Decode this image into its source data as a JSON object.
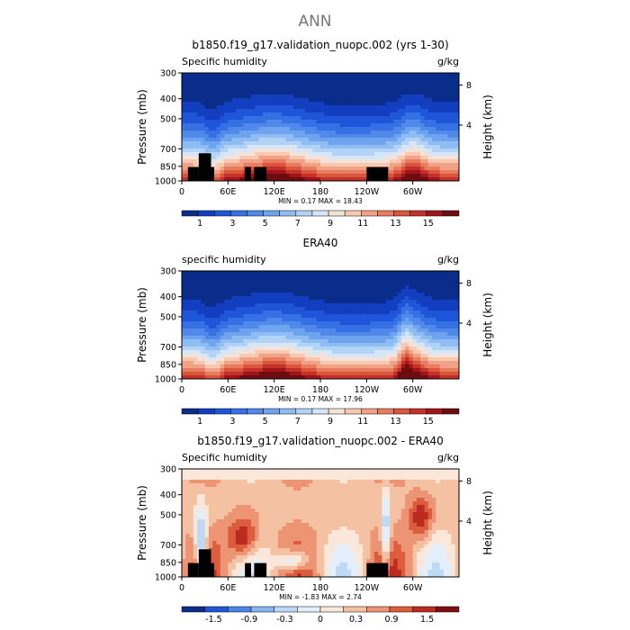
{
  "page_title": "ANN",
  "colors": {
    "sequential": [
      "#0a2c8a",
      "#133ec0",
      "#1f55d8",
      "#3570e4",
      "#5089ea",
      "#6ea3ef",
      "#8fbcf3",
      "#b2d3f6",
      "#d4e6f8",
      "#f3e2d7",
      "#f8c8b0",
      "#f1a286",
      "#e77c5e",
      "#d9553c",
      "#c4302a",
      "#a0141b",
      "#6e0d10"
    ],
    "difference": [
      "#0a2c8a",
      "#1f55d8",
      "#4a85ea",
      "#86b5f1",
      "#bcd9f6",
      "#e2eef9",
      "#fbe6da",
      "#f5c1a3",
      "#ec9473",
      "#db5d3e",
      "#bb2b20",
      "#800f12"
    ]
  },
  "chart_data": [
    {
      "type": "heatmap",
      "title": "b1850.f19_g17.validation_nuopc.002 (yrs 1-30)",
      "subtitle_left": "Specific humidity",
      "subtitle_right": "g/kg",
      "ylabel": "Pressure (mb)",
      "ylabel_right": "Height (km)",
      "x_ticks": [
        "0",
        "60E",
        "120E",
        "180",
        "120W",
        "60W"
      ],
      "y_ticks": [
        "300",
        "400",
        "500",
        "700",
        "850",
        "1000"
      ],
      "y_right_ticks": [
        "8",
        "4"
      ],
      "stats": "MIN =     0.17   MAX =    18.43",
      "colorbar_labels": [
        "1",
        "3",
        "5",
        "7",
        "9",
        "11",
        "13",
        "15"
      ],
      "x_range": [
        0,
        360
      ],
      "y_range_mb": [
        1000,
        300
      ],
      "max_value": 18.43,
      "has_terrain": true
    },
    {
      "type": "heatmap",
      "title": "ERA40",
      "subtitle_left": "specific humidity",
      "subtitle_right": "g/kg",
      "ylabel": "Pressure (mb)",
      "ylabel_right": "Height (km)",
      "x_ticks": [
        "0",
        "60E",
        "120E",
        "180",
        "120W",
        "60W"
      ],
      "y_ticks": [
        "300",
        "400",
        "500",
        "700",
        "850",
        "1000"
      ],
      "y_right_ticks": [
        "8",
        "4"
      ],
      "stats": "MIN =     0.17   MAX =    17.96",
      "colorbar_labels": [
        "1",
        "3",
        "5",
        "7",
        "9",
        "11",
        "13",
        "15"
      ],
      "x_range": [
        0,
        360
      ],
      "y_range_mb": [
        1000,
        300
      ],
      "max_value": 17.96,
      "has_terrain": false
    },
    {
      "type": "heatmap",
      "title": "b1850.f19_g17.validation_nuopc.002 - ERA40",
      "subtitle_left": "Specific humidity",
      "subtitle_right": "g/kg",
      "ylabel": "Pressure (mb)",
      "ylabel_right": "Height (km)",
      "x_ticks": [
        "0",
        "60E",
        "120E",
        "180",
        "120W",
        "60W"
      ],
      "y_ticks": [
        "300",
        "400",
        "500",
        "700",
        "850",
        "1000"
      ],
      "y_right_ticks": [
        "8",
        "4"
      ],
      "stats": "MIN =   -1.83   MAX =    2.74",
      "colorbar_labels": [
        "-1.5",
        "-0.9",
        "-0.3",
        "0",
        "0.3",
        "0.9",
        "1.5"
      ],
      "x_range": [
        0,
        360
      ],
      "y_range_mb": [
        1000,
        300
      ],
      "min_value": -1.83,
      "max_value": 2.74,
      "has_terrain": true
    }
  ]
}
